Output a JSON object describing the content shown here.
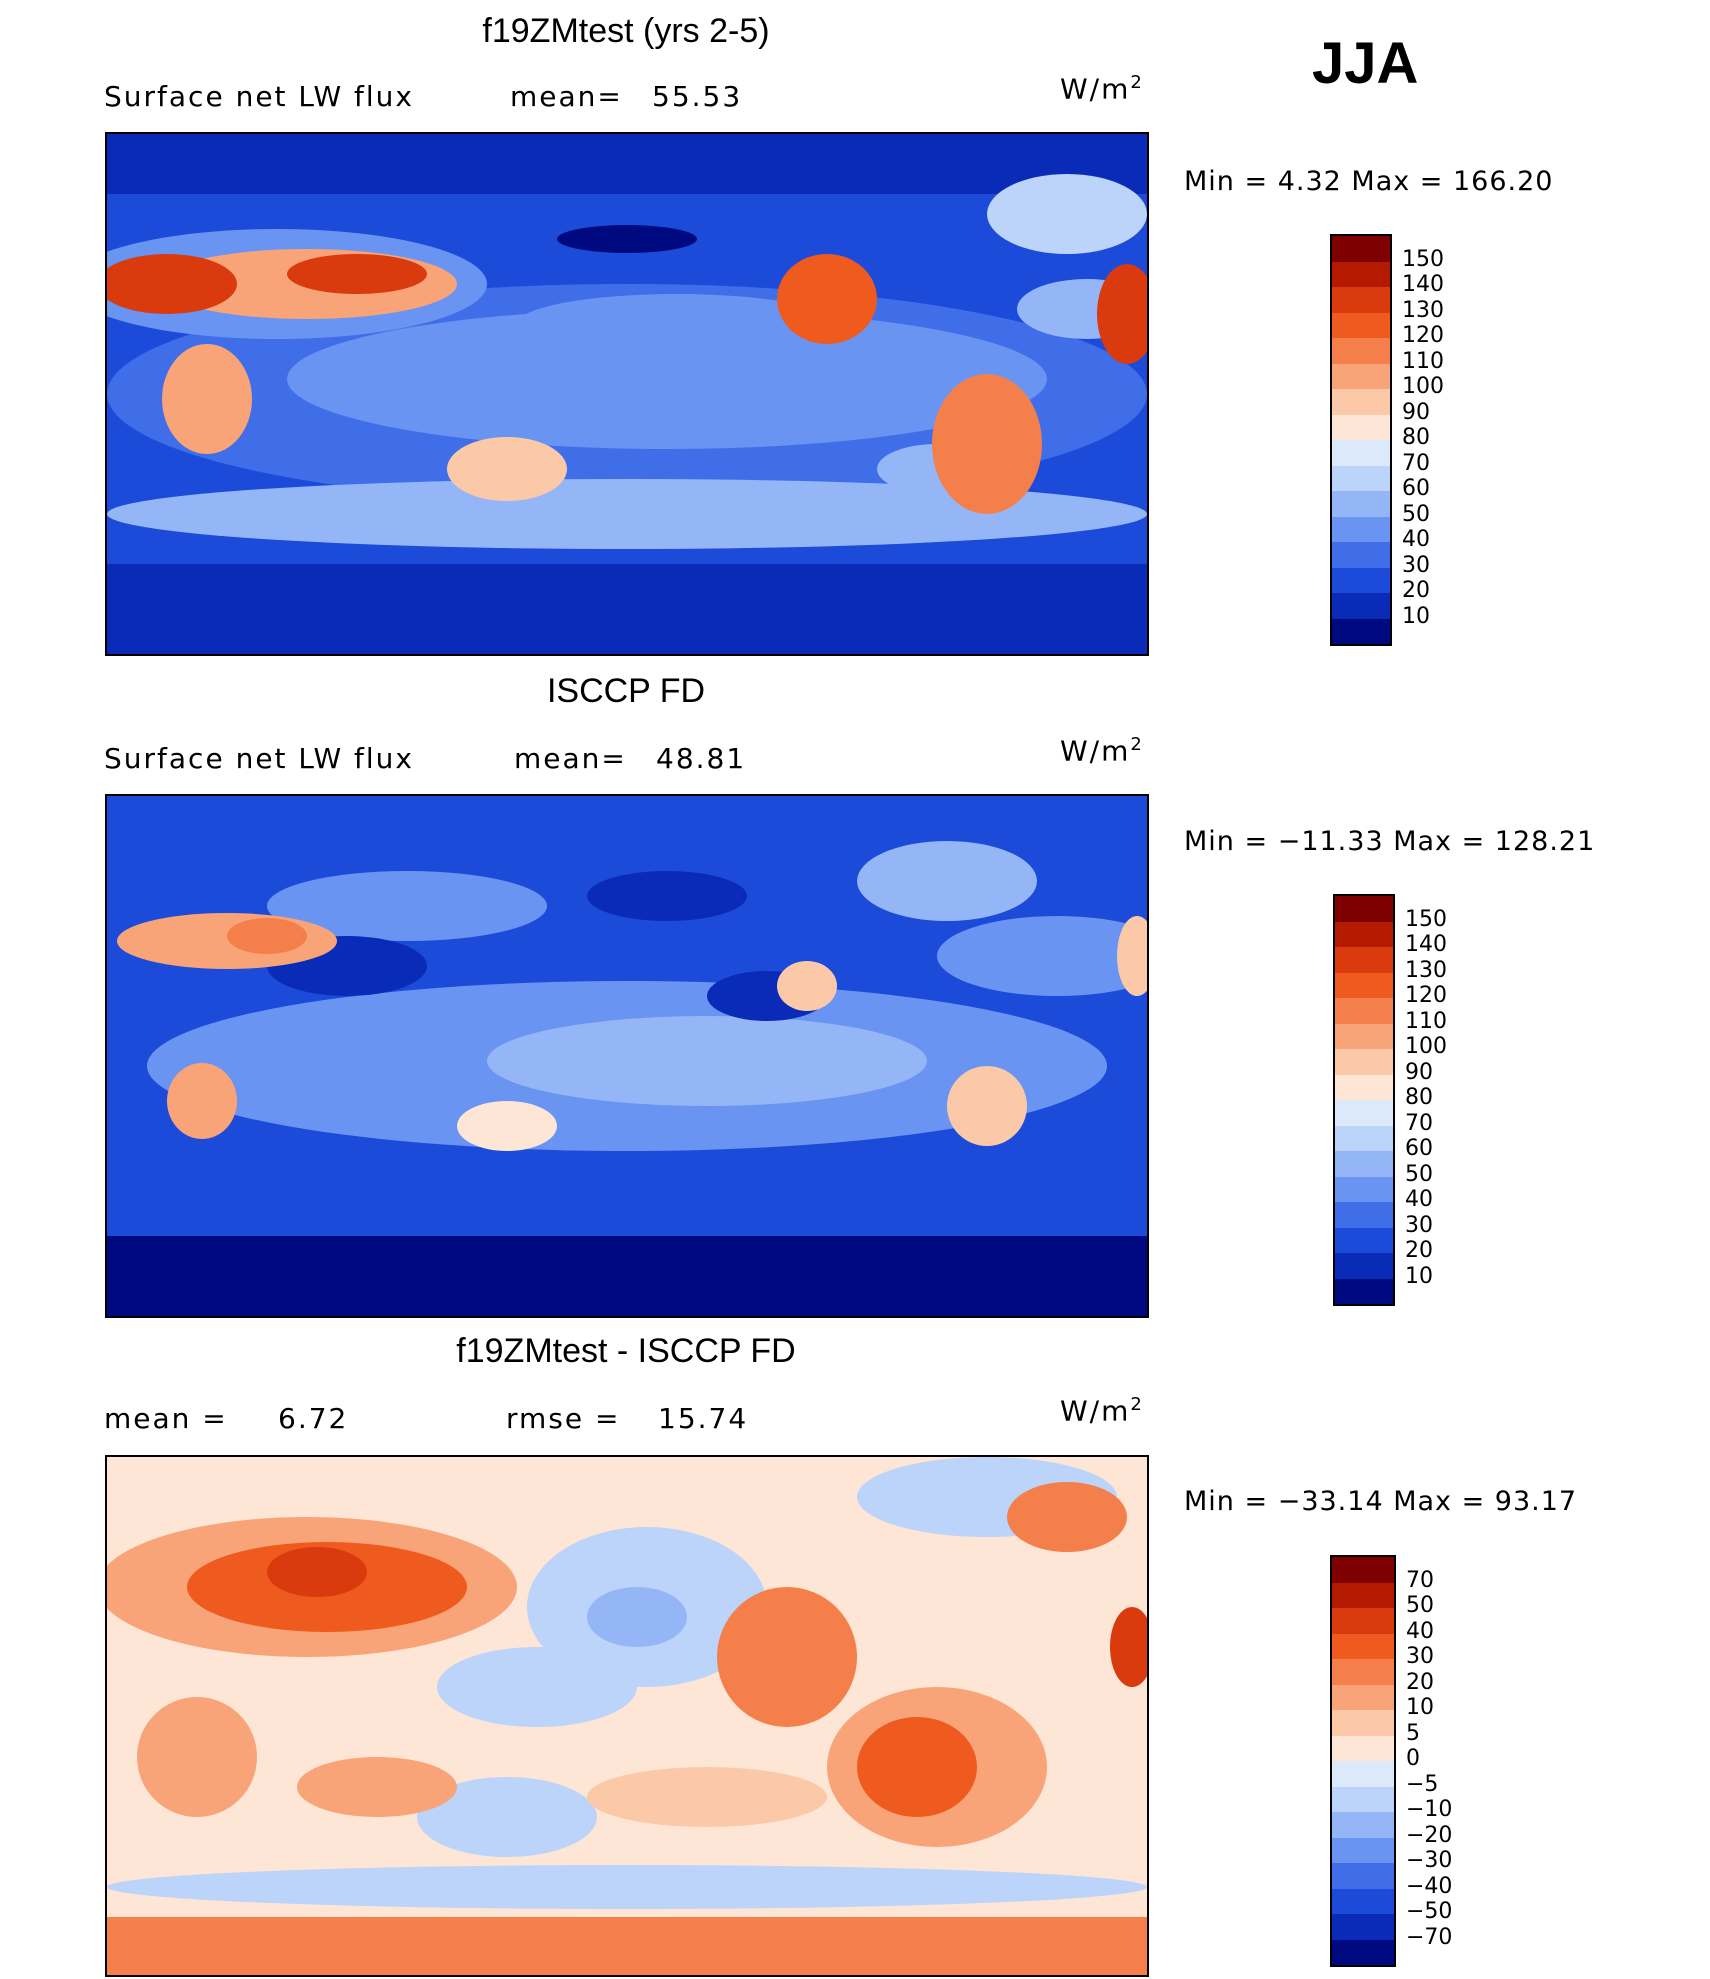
{
  "season": "JJA",
  "panels": [
    {
      "id": "model",
      "title": "f19ZMtest (yrs 2-5)",
      "left_label": "Surface net LW flux",
      "mid_label": "mean=",
      "mid_value": "55.53",
      "units_base": "W/m",
      "units_sup": "2",
      "minmax": "Min =    4.32 Max = 166.20",
      "colorbar": {
        "labels": [
          "150",
          "140",
          "130",
          "120",
          "110",
          "100",
          "90",
          "80",
          "70",
          "60",
          "50",
          "40",
          "30",
          "20",
          "10"
        ],
        "colors": [
          "#7f0000",
          "#b31a00",
          "#d93a0e",
          "#ef5a1f",
          "#f57f4a",
          "#f8a478",
          "#fcc9a8",
          "#fde6d5",
          "#dbe9fb",
          "#bcd3fa",
          "#94b6f7",
          "#6a94f2",
          "#3f6ee8",
          "#1c4bd9",
          "#0a2bb8",
          "#000a80"
        ]
      }
    },
    {
      "id": "obs",
      "title": "ISCCP FD",
      "left_label": "Surface net LW flux",
      "mid_label": "mean=",
      "mid_value": "48.81",
      "units_base": "W/m",
      "units_sup": "2",
      "minmax": "Min = −11.33 Max = 128.21",
      "colorbar": {
        "labels": [
          "150",
          "140",
          "130",
          "120",
          "110",
          "100",
          "90",
          "80",
          "70",
          "60",
          "50",
          "40",
          "30",
          "20",
          "10"
        ],
        "colors": [
          "#7f0000",
          "#b31a00",
          "#d93a0e",
          "#ef5a1f",
          "#f57f4a",
          "#f8a478",
          "#fcc9a8",
          "#fde6d5",
          "#dbe9fb",
          "#bcd3fa",
          "#94b6f7",
          "#6a94f2",
          "#3f6ee8",
          "#1c4bd9",
          "#0a2bb8",
          "#000a80"
        ]
      }
    },
    {
      "id": "diff",
      "title": "f19ZMtest - ISCCP FD",
      "left_label": "mean =",
      "left_value": "6.72",
      "mid_label": "rmse =",
      "mid_value": "15.74",
      "units_base": "W/m",
      "units_sup": "2",
      "minmax": "Min = −33.14 Max =  93.17",
      "colorbar": {
        "labels": [
          "70",
          "50",
          "40",
          "30",
          "20",
          "10",
          "5",
          "0",
          "−5",
          "−10",
          "−20",
          "−30",
          "−40",
          "−50",
          "−70"
        ],
        "colors": [
          "#7f0000",
          "#b31a00",
          "#d93a0e",
          "#ef5a1f",
          "#f57f4a",
          "#f8a478",
          "#fcc9a8",
          "#fde6d5",
          "#dbe9fb",
          "#bcd3fa",
          "#94b6f7",
          "#6a94f2",
          "#3f6ee8",
          "#1c4bd9",
          "#0a2bb8",
          "#000a80"
        ]
      }
    }
  ]
}
